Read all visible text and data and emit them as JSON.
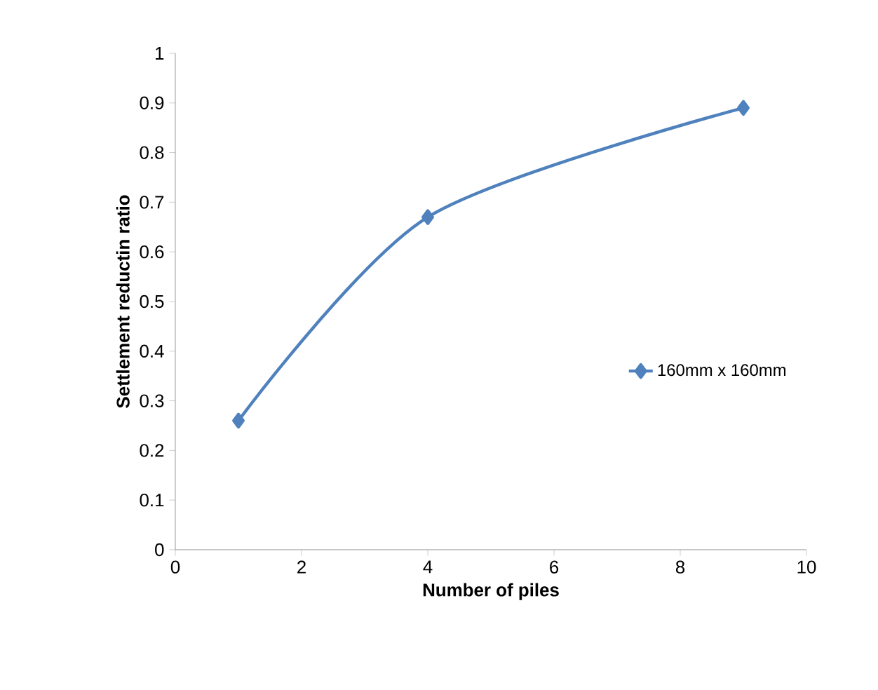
{
  "chart_data": {
    "type": "line",
    "xlabel": "Number of piles",
    "ylabel": "Settlement reductin ratio",
    "x": [
      1,
      4,
      9
    ],
    "series": [
      {
        "name": "160mm x 160mm",
        "color": "#4f81bd",
        "values": [
          0.26,
          0.67,
          0.89
        ]
      }
    ],
    "xlim": [
      0,
      10
    ],
    "xticks": [
      0,
      2,
      4,
      6,
      8,
      10
    ],
    "ylim": [
      0,
      1
    ],
    "yticks": [
      0,
      0.1,
      0.2,
      0.3,
      0.4,
      0.5,
      0.6,
      0.7,
      0.8,
      0.9,
      1
    ],
    "grid": false,
    "legend": "right",
    "marker": "diamond",
    "line_style": "solid"
  }
}
